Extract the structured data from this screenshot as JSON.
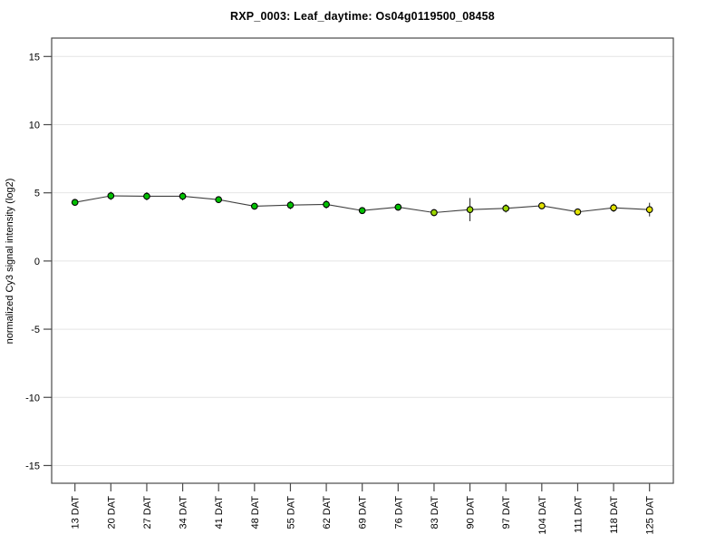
{
  "page": {
    "background": "#ffffff"
  },
  "chart_data": {
    "type": "line",
    "title": "RXP_0003: Leaf_daytime: Os04g0119500_08458",
    "xlabel": "",
    "ylabel": "normalized Cy3 signal intensity (log2)",
    "categories": [
      "13 DAT",
      "20 DAT",
      "27 DAT",
      "34 DAT",
      "41 DAT",
      "48 DAT",
      "55 DAT",
      "62 DAT",
      "69 DAT",
      "76 DAT",
      "83 DAT",
      "90 DAT",
      "97 DAT",
      "104 DAT",
      "111 DAT",
      "118 DAT",
      "125 DAT"
    ],
    "series": [
      {
        "name": "normalized Cy3 signal intensity",
        "values": [
          4.3,
          4.78,
          4.75,
          4.75,
          4.5,
          4.02,
          4.1,
          4.15,
          3.7,
          3.95,
          3.55,
          3.77,
          3.86,
          4.05,
          3.6,
          3.9,
          3.77
        ],
        "errors": [
          0.25,
          0.3,
          0.3,
          0.3,
          0.25,
          0.25,
          0.3,
          0.3,
          0.25,
          0.25,
          0.25,
          0.85,
          0.3,
          0.25,
          0.25,
          0.3,
          0.5
        ],
        "point_colors": [
          "#00c000",
          "#00c000",
          "#00c000",
          "#00c000",
          "#00c000",
          "#00c000",
          "#00c000",
          "#00c000",
          "#00c000",
          "#00c000",
          "#9bd600",
          "#9bd600",
          "#9bd600",
          "#e2e200",
          "#e2e200",
          "#e2e200",
          "#e2e200"
        ]
      }
    ],
    "yticks": [
      15,
      10,
      5,
      0,
      -5,
      -10,
      -15
    ],
    "ylim": [
      -16.3,
      16.35
    ],
    "grid": true,
    "legend": "none",
    "line_color": "#404040",
    "marker_outline": "#000000",
    "error_bar_color": "#333333",
    "grid_color": "#e4e4e4",
    "axis_color": "#4a4a4a",
    "tick_label_color": "#000000"
  }
}
